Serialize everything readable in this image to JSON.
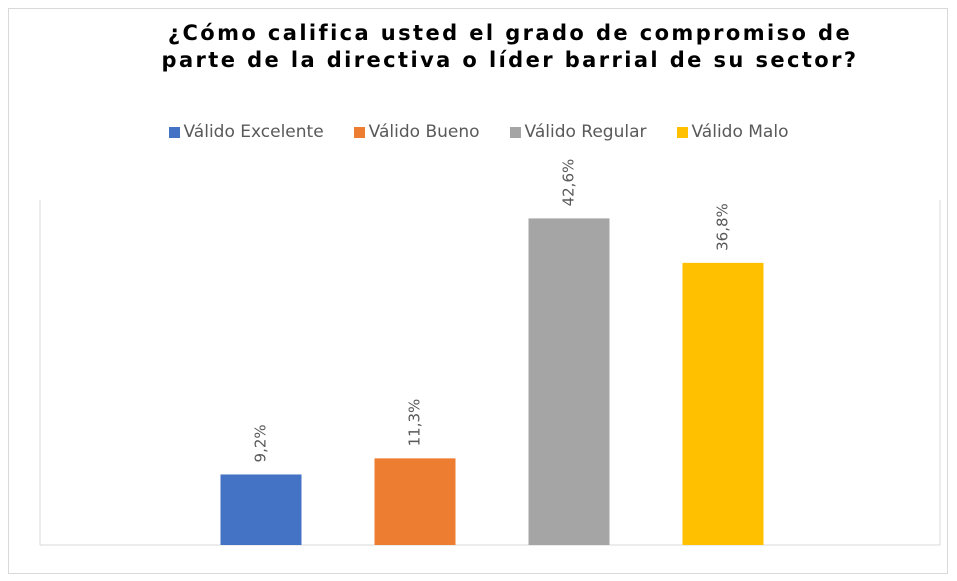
{
  "chart_data": {
    "type": "bar",
    "title": "¿Cómo califica usted el grado de compromiso de parte de la directiva o líder barrial de su sector?",
    "categories": [
      null
    ],
    "series": [
      {
        "name": "Válido Excelente",
        "color": "#4472c4",
        "values": [
          9.2
        ],
        "value_labels": [
          "9,2%"
        ]
      },
      {
        "name": "Válido Bueno",
        "color": "#ed7d31",
        "values": [
          11.3
        ],
        "value_labels": [
          "11,3%"
        ]
      },
      {
        "name": "Válido Regular",
        "color": "#a5a5a5",
        "values": [
          42.6
        ],
        "value_labels": [
          "42,6%"
        ]
      },
      {
        "name": "Válido Malo",
        "color": "#ffc000",
        "values": [
          36.8
        ],
        "value_labels": [
          "36,8%"
        ]
      }
    ],
    "ylim": [
      0,
      45
    ],
    "legend": "top"
  }
}
